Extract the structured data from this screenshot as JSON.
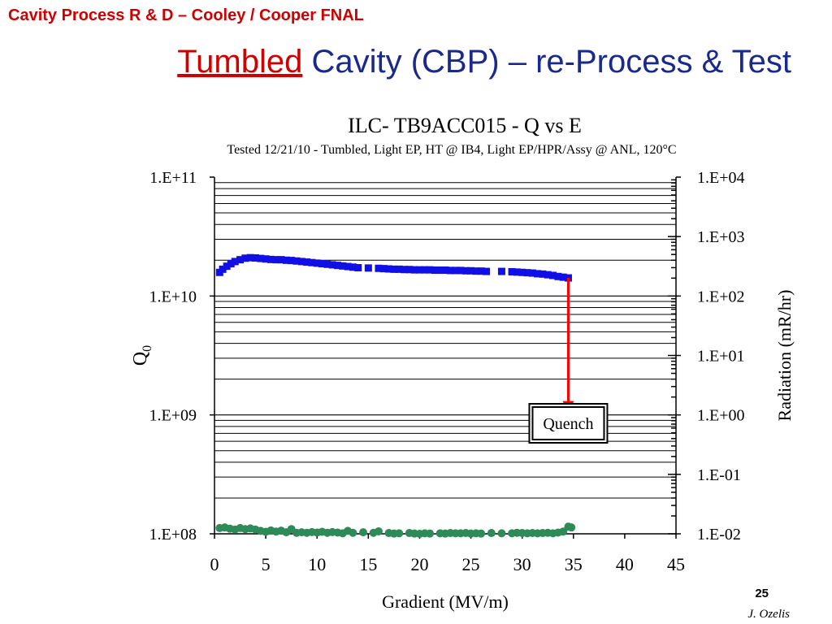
{
  "header": {
    "text": "Cavity Process R & D – Cooley / Cooper FNAL"
  },
  "title": {
    "highlight": "Tumbled",
    "rest": " Cavity (CBP) – re-Process & Test"
  },
  "footer": {
    "page_number": "25",
    "author": "J. Ozelis"
  },
  "chart_data": {
    "type": "scatter",
    "title": "ILC- TB9ACC015 - Q vs E",
    "subtitle": "Tested 12/21/10 - Tumbled, Light EP, HT @ IB4, Light EP/HPR/Assy @ ANL, 120°C",
    "xlabel": "Gradient (MV/m)",
    "ylabel": "Q",
    "ylabel_subscript": "0",
    "y2label": "Radiation (mR/hr)",
    "xlim": [
      0,
      45
    ],
    "xticks": [
      "0",
      "5",
      "10",
      "15",
      "20",
      "25",
      "30",
      "35",
      "40",
      "45"
    ],
    "ylim": [
      100000000.0,
      100000000000.0
    ],
    "y_scale": "log",
    "yticks": [
      "1.E+08",
      "1.E+09",
      "1.E+10",
      "1.E+11"
    ],
    "y2lim": [
      0.01,
      10000
    ],
    "y2_scale": "log",
    "y2ticks": [
      "1.E-02",
      "1.E-01",
      "1.E+00",
      "1.E+01",
      "1.E+02",
      "1.E+03",
      "1.E+04"
    ],
    "grid": true,
    "series": [
      {
        "color": "#1010e6",
        "marker": "square",
        "axis": "left",
        "points": [
          [
            0.5,
            15800000000.0
          ],
          [
            0.8,
            16800000000.0
          ],
          [
            1.2,
            17800000000.0
          ],
          [
            1.6,
            18700000000.0
          ],
          [
            2.0,
            19500000000.0
          ],
          [
            2.5,
            20200000000.0
          ],
          [
            3.0,
            20800000000.0
          ],
          [
            3.5,
            21000000000.0
          ],
          [
            4.0,
            20900000000.0
          ],
          [
            4.5,
            20700000000.0
          ],
          [
            5.0,
            20500000000.0
          ],
          [
            5.5,
            20300000000.0
          ],
          [
            6.0,
            20200000000.0
          ],
          [
            6.5,
            20200000000.0
          ],
          [
            7.0,
            20000000000.0
          ],
          [
            7.5,
            19900000000.0
          ],
          [
            8.0,
            19700000000.0
          ],
          [
            8.5,
            19500000000.0
          ],
          [
            9.0,
            19300000000.0
          ],
          [
            9.5,
            19100000000.0
          ],
          [
            10.0,
            18900000000.0
          ],
          [
            10.5,
            18700000000.0
          ],
          [
            11.0,
            18500000000.0
          ],
          [
            11.5,
            18300000000.0
          ],
          [
            12.0,
            18100000000.0
          ],
          [
            12.5,
            17900000000.0
          ],
          [
            13.0,
            17700000000.0
          ],
          [
            13.5,
            17500000000.0
          ],
          [
            14.0,
            17300000000.0
          ],
          [
            15.0,
            17200000000.0
          ],
          [
            16.0,
            17100000000.0
          ],
          [
            16.5,
            17000000000.0
          ],
          [
            17.0,
            16900000000.0
          ],
          [
            17.5,
            16800000000.0
          ],
          [
            18.0,
            16800000000.0
          ],
          [
            18.5,
            16700000000.0
          ],
          [
            19.0,
            16700000000.0
          ],
          [
            19.5,
            16600000000.0
          ],
          [
            20.0,
            16600000000.0
          ],
          [
            20.5,
            16600000000.0
          ],
          [
            21.0,
            16600000000.0
          ],
          [
            21.5,
            16500000000.0
          ],
          [
            22.0,
            16500000000.0
          ],
          [
            22.5,
            16500000000.0
          ],
          [
            23.0,
            16400000000.0
          ],
          [
            23.5,
            16400000000.0
          ],
          [
            24.0,
            16400000000.0
          ],
          [
            24.5,
            16300000000.0
          ],
          [
            25.0,
            16300000000.0
          ],
          [
            25.5,
            16200000000.0
          ],
          [
            26.0,
            16200000000.0
          ],
          [
            26.5,
            16100000000.0
          ],
          [
            28.0,
            16100000000.0
          ],
          [
            29.0,
            16000000000.0
          ],
          [
            29.5,
            15900000000.0
          ],
          [
            30.0,
            15800000000.0
          ],
          [
            30.5,
            15700000000.0
          ],
          [
            31.0,
            15600000000.0
          ],
          [
            31.5,
            15400000000.0
          ],
          [
            32.0,
            15300000000.0
          ],
          [
            32.5,
            15100000000.0
          ],
          [
            33.0,
            14900000000.0
          ],
          [
            33.5,
            14600000000.0
          ],
          [
            34.0,
            14400000000.0
          ],
          [
            34.5,
            14200000000.0
          ]
        ]
      },
      {
        "color": "#2e8b57",
        "marker": "circle",
        "axis": "right",
        "points": [
          [
            0.5,
            0.0125
          ],
          [
            1.0,
            0.0128
          ],
          [
            1.5,
            0.0122
          ],
          [
            2.0,
            0.0118
          ],
          [
            2.5,
            0.0125
          ],
          [
            3.0,
            0.012
          ],
          [
            3.5,
            0.0123
          ],
          [
            4.0,
            0.0118
          ],
          [
            4.5,
            0.0112
          ],
          [
            5.0,
            0.0108
          ],
          [
            5.5,
            0.0114
          ],
          [
            6.0,
            0.0109
          ],
          [
            6.5,
            0.0113
          ],
          [
            7.0,
            0.0106
          ],
          [
            7.5,
            0.012
          ],
          [
            8.0,
            0.0104
          ],
          [
            8.5,
            0.0106
          ],
          [
            9.0,
            0.0104
          ],
          [
            9.5,
            0.0107
          ],
          [
            10.0,
            0.0105
          ],
          [
            10.5,
            0.0108
          ],
          [
            11.0,
            0.0104
          ],
          [
            11.5,
            0.0107
          ],
          [
            12.0,
            0.0105
          ],
          [
            12.5,
            0.0102
          ],
          [
            13.0,
            0.0112
          ],
          [
            13.5,
            0.0104
          ],
          [
            14.5,
            0.0106
          ],
          [
            15.5,
            0.0104
          ],
          [
            16.0,
            0.011
          ],
          [
            17.0,
            0.0103
          ],
          [
            17.5,
            0.0101
          ],
          [
            18.0,
            0.0102
          ],
          [
            19.0,
            0.0103
          ],
          [
            19.5,
            0.0101
          ],
          [
            20.0,
            0.01
          ],
          [
            20.5,
            0.0102
          ],
          [
            21.0,
            0.0101
          ],
          [
            22.0,
            0.0102
          ],
          [
            22.5,
            0.0101
          ],
          [
            23.0,
            0.0103
          ],
          [
            23.5,
            0.0102
          ],
          [
            24.0,
            0.0102
          ],
          [
            24.5,
            0.0103
          ],
          [
            25.0,
            0.0101
          ],
          [
            25.5,
            0.0102
          ],
          [
            26.0,
            0.0101
          ],
          [
            27.0,
            0.0103
          ],
          [
            28.0,
            0.0102
          ],
          [
            29.0,
            0.0102
          ],
          [
            29.5,
            0.0104
          ],
          [
            30.0,
            0.0103
          ],
          [
            30.5,
            0.0102
          ],
          [
            31.0,
            0.0103
          ],
          [
            31.5,
            0.0102
          ],
          [
            32.0,
            0.0103
          ],
          [
            32.5,
            0.0104
          ],
          [
            33.0,
            0.0102
          ],
          [
            33.5,
            0.0105
          ],
          [
            34.0,
            0.0109
          ],
          [
            34.5,
            0.0132
          ],
          [
            34.8,
            0.0128
          ]
        ]
      }
    ],
    "annotation": {
      "text": "Quench",
      "color": "#ff0000",
      "arrow": {
        "x": 34.5,
        "y_from": 14200000000.0,
        "y_to": 1050000000.0
      },
      "box_center": {
        "x": 34.5,
        "y": 850000000.0
      }
    }
  }
}
